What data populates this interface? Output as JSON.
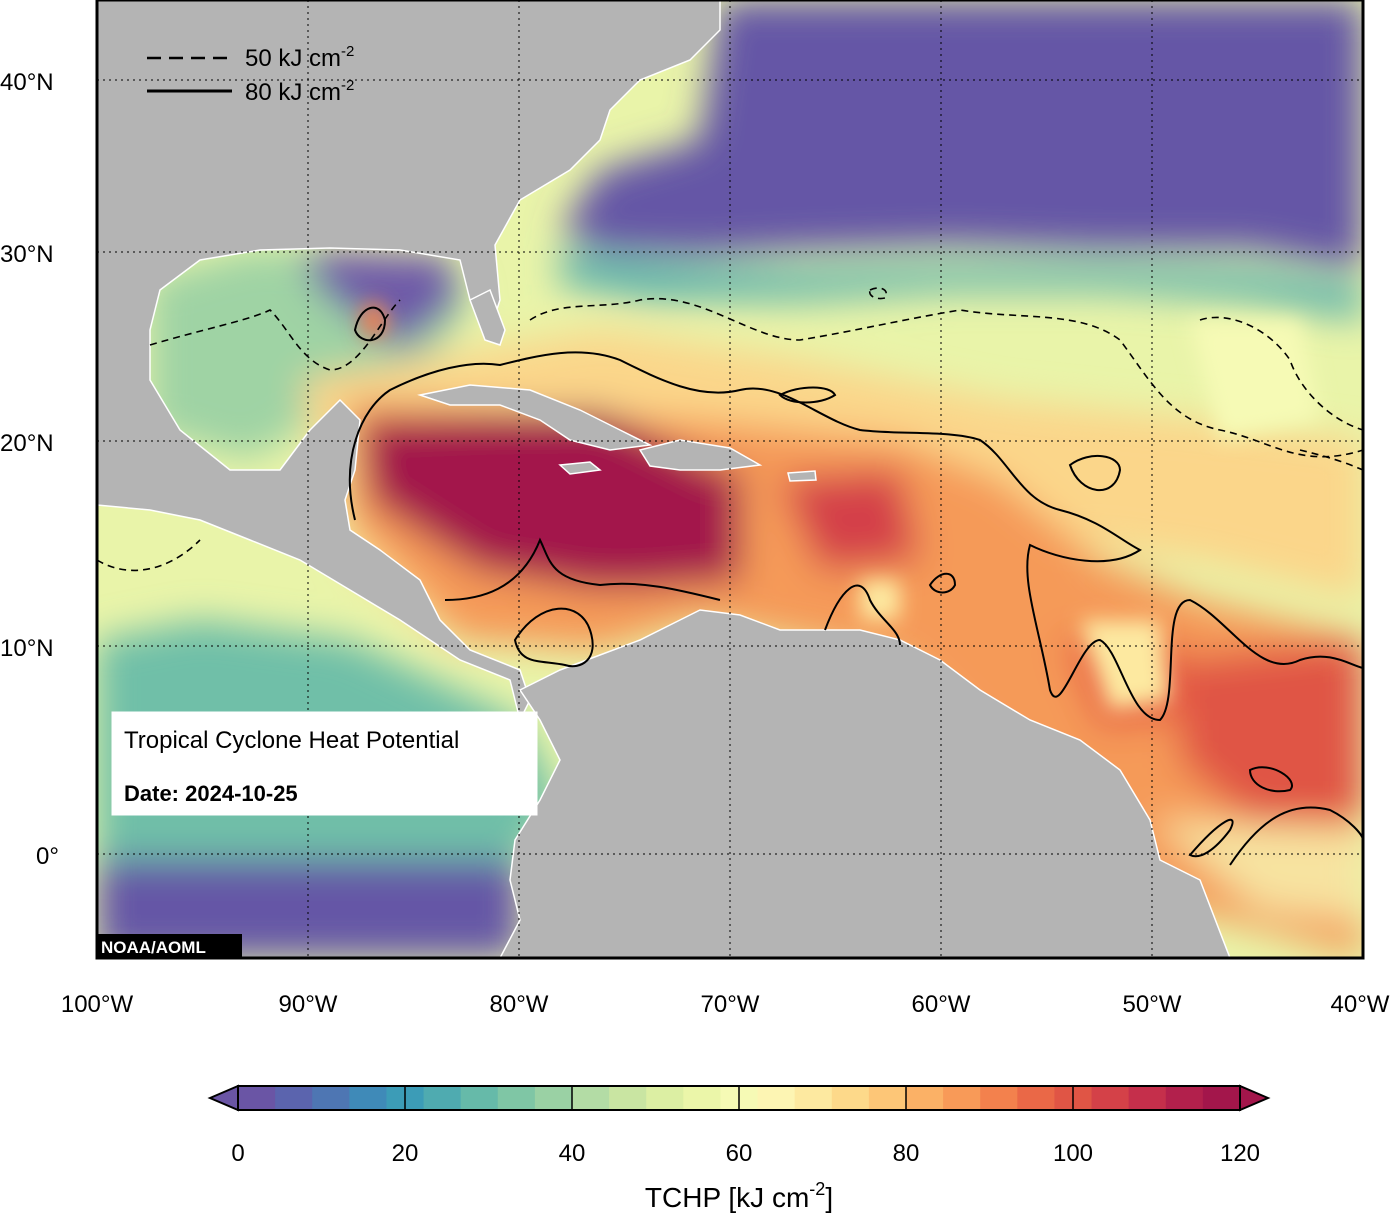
{
  "map": {
    "info_box": {
      "title": "Tropical Cyclone Heat Potential",
      "date": "Date: 2024-10-25"
    },
    "credit": "NOAA/AOML",
    "contour_legend": [
      {
        "style": "dashed",
        "label": "50 kJ cm",
        "exponent": "-2"
      },
      {
        "style": "solid",
        "label": "80 kJ cm",
        "exponent": "-2"
      }
    ],
    "lat_labels": [
      "40°N",
      "30°N",
      "20°N",
      "10°N",
      "0°"
    ],
    "lon_labels": [
      "100°W",
      "90°W",
      "80°W",
      "70°W",
      "60°W",
      "50°W",
      "40°W"
    ],
    "colors": {
      "land": "#b4b4b4",
      "cold": "#6557a6",
      "warm": "#a3164b"
    }
  },
  "colorbar": {
    "ticks": [
      "0",
      "20",
      "40",
      "60",
      "80",
      "100",
      "120"
    ],
    "label": "TCHP [kJ cm",
    "label_exponent": "-2",
    "label_close": "]",
    "colors": [
      "#6a55a5",
      "#5b64ae",
      "#4e76b3",
      "#3f8ab8",
      "#3c9cb7",
      "#4fabb0",
      "#66baa9",
      "#7fc6a5",
      "#9ad1a4",
      "#b3dca5",
      "#c9e5a2",
      "#dcefa3",
      "#ebf6a9",
      "#f6fab5",
      "#fdf5b3",
      "#fde9a0",
      "#fdd98a",
      "#fdc677",
      "#fbb166",
      "#f89a58",
      "#f3814d",
      "#ea6847",
      "#e05545",
      "#d44148",
      "#c52f4b",
      "#b2204c",
      "#a3164b"
    ]
  }
}
